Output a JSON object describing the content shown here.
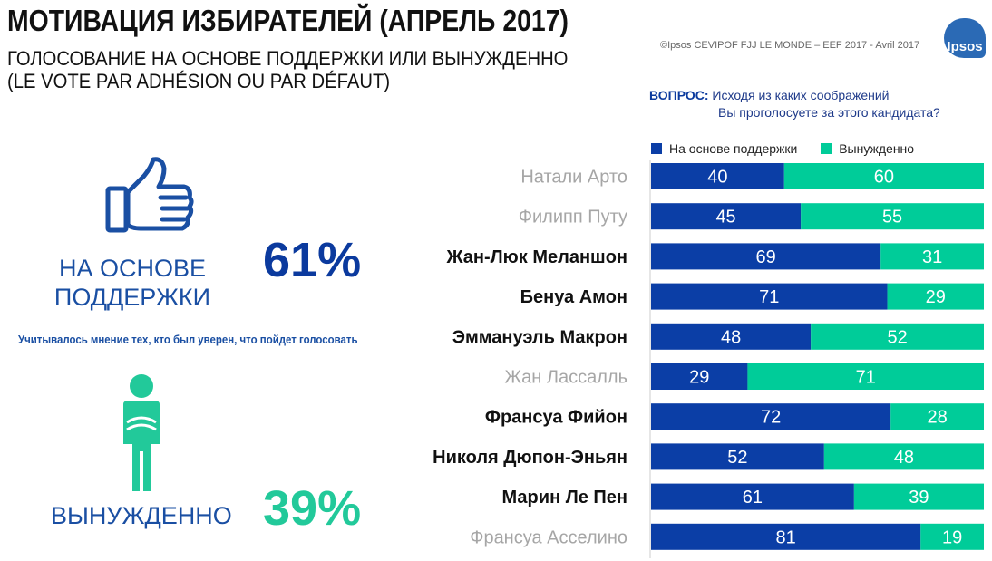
{
  "header": {
    "title": "МОТИВАЦИЯ ИЗБИРАТЕЛЕЙ (АПРЕЛЬ 2017)",
    "subtitle_line1": "ГОЛОСОВАНИЕ НА ОСНОВЕ ПОДДЕРЖКИ ИЛИ ВЫНУЖДЕННО",
    "subtitle_line2": "(LE VOTE PAR ADHÉSION OU PAR DÉFAUT)",
    "copyright": "©Ipsos  CEVIPOF FJJ LE MONDE – EEF 2017 -  Avril 2017",
    "logo_text": "Ipsos"
  },
  "question": {
    "label": "ВОПРОС:",
    "line1": "Исходя из каких соображений",
    "line2": "Вы проголосуете за этого кандидата?"
  },
  "summary": {
    "support_label_line1": "НА ОСНОВЕ",
    "support_label_line2": "ПОДДЕРЖКИ",
    "support_pct": "61%",
    "note": "Учитывалось мнение тех, кто был уверен, что пойдет голосовать",
    "forced_label": "ВЫНУЖДЕННО",
    "forced_pct": "39%"
  },
  "colors": {
    "support": "#0b3ea6",
    "forced": "#00cc99",
    "candidate_highlight": "#111111",
    "candidate_muted": "#a6a6a6"
  },
  "icons": {
    "thumb": "thumbs-up-icon",
    "person": "person-arms-crossed-icon"
  },
  "chart_data": {
    "type": "bar",
    "orientation": "horizontal",
    "stacked": true,
    "categories": [
      "Натали Арто",
      "Филипп Путу",
      "Жан-Люк Меланшон",
      "Бенуа Амон",
      "Эммануэль Макрон",
      "Жан Лассалль",
      "Франсуа Фийон",
      "Николя Дюпон-Эньян",
      "Марин Ле Пен",
      "Франсуа Асселино"
    ],
    "highlighted": [
      false,
      false,
      true,
      true,
      true,
      false,
      true,
      true,
      true,
      false
    ],
    "series": [
      {
        "name": "На основе поддержки",
        "color": "#0b3ea6",
        "values": [
          40,
          45,
          69,
          71,
          48,
          29,
          72,
          52,
          61,
          81
        ]
      },
      {
        "name": "Вынужденно",
        "color": "#00cc99",
        "values": [
          60,
          55,
          31,
          29,
          52,
          71,
          28,
          48,
          39,
          19
        ]
      }
    ],
    "xlim": [
      0,
      100
    ],
    "legend": "top",
    "grid": false
  }
}
